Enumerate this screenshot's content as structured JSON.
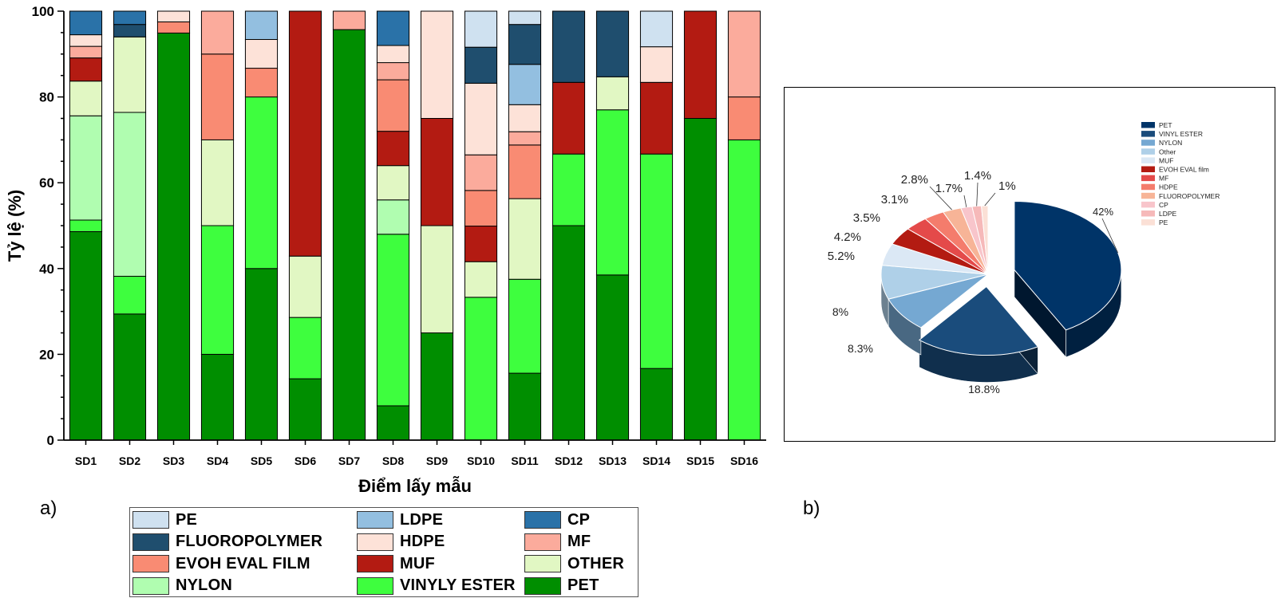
{
  "panel_labels": {
    "a": "a)",
    "b": "b)"
  },
  "colors": {
    "PE": "#cfe1f0",
    "LDPE": "#93bfe0",
    "CP": "#2a72a8",
    "FLUOROPOLYMER": "#1f4e6e",
    "HDPE": "#fde2d8",
    "MF": "#fbab9c",
    "EVOH EVAL FILM": "#f98b73",
    "MUF": "#b31b12",
    "OTHER": "#e1f7c3",
    "NYLON": "#b0fdb0",
    "VINYLY ESTER": "#3efe3e",
    "PET": "#008e00"
  },
  "legend_a": [
    {
      "key": "PE",
      "label": "PE"
    },
    {
      "key": "LDPE",
      "label": "LDPE"
    },
    {
      "key": "CP",
      "label": "CP"
    },
    {
      "key": "FLUOROPOLYMER",
      "label": "FLUOROPOLYMER"
    },
    {
      "key": "HDPE",
      "label": "HDPE"
    },
    {
      "key": "MF",
      "label": "MF"
    },
    {
      "key": "EVOH EVAL FILM",
      "label": "EVOH EVAL FILM"
    },
    {
      "key": "MUF",
      "label": "MUF"
    },
    {
      "key": "OTHER",
      "label": "OTHER"
    },
    {
      "key": "NYLON",
      "label": "NYLON"
    },
    {
      "key": "VINYLY ESTER",
      "label": "VINYLY ESTER"
    },
    {
      "key": "PET",
      "label": "PET"
    }
  ],
  "chart_data": [
    {
      "type": "bar",
      "stacked": true,
      "title": "",
      "xlabel": "Điểm lấy mẫu",
      "ylabel": "Tỷ lệ (%)",
      "ylim": [
        0,
        100
      ],
      "yticks": [
        0,
        20,
        40,
        60,
        80,
        100
      ],
      "categories": [
        "SD1",
        "SD2",
        "SD3",
        "SD4",
        "SD5",
        "SD6",
        "SD7",
        "SD8",
        "SD9",
        "SD10",
        "SD11",
        "SD12",
        "SD13",
        "SD14",
        "SD15",
        "SD16"
      ],
      "stack_order": [
        "PET",
        "VINYLY ESTER",
        "NYLON",
        "OTHER",
        "MUF",
        "EVOH EVAL FILM",
        "MF",
        "HDPE",
        "LDPE",
        "FLUOROPOLYMER",
        "CP",
        "PE"
      ],
      "series": [
        {
          "name": "PET",
          "values": [
            48.6,
            29.4,
            94.9,
            20,
            40,
            14.3,
            95.7,
            8,
            25,
            0,
            15.6,
            50,
            38.5,
            16.7,
            75,
            0
          ]
        },
        {
          "name": "VINYLY ESTER",
          "values": [
            2.7,
            8.8,
            0,
            30,
            40,
            14.3,
            0,
            40,
            0,
            33.3,
            21.9,
            16.7,
            38.5,
            50,
            0,
            70
          ]
        },
        {
          "name": "NYLON",
          "values": [
            24.3,
            38.2,
            0,
            0,
            0,
            0,
            0,
            8,
            0,
            0,
            0,
            0,
            0,
            0,
            0,
            0
          ]
        },
        {
          "name": "OTHER",
          "values": [
            8.1,
            17.6,
            0,
            20,
            0,
            14.3,
            0,
            8,
            25,
            8.3,
            18.8,
            0,
            7.7,
            0,
            0,
            0
          ]
        },
        {
          "name": "MUF",
          "values": [
            5.4,
            0,
            0,
            0,
            0,
            57.1,
            0,
            8,
            25,
            8.3,
            0,
            16.7,
            0,
            16.7,
            25,
            0
          ]
        },
        {
          "name": "EVOH EVAL FILM",
          "values": [
            0,
            0,
            2.6,
            20,
            6.7,
            0,
            0,
            12,
            0,
            8.3,
            12.5,
            0,
            0,
            0,
            0,
            10
          ]
        },
        {
          "name": "MF",
          "values": [
            2.7,
            0,
            0,
            10,
            0,
            0,
            4.3,
            4,
            0,
            8.3,
            3.1,
            0,
            0,
            0,
            0,
            20
          ]
        },
        {
          "name": "HDPE",
          "values": [
            2.7,
            0,
            2.5,
            0,
            6.7,
            0,
            0,
            4,
            25,
            16.7,
            6.3,
            0,
            0,
            8.3,
            0,
            0
          ]
        },
        {
          "name": "LDPE",
          "values": [
            0,
            0,
            0,
            0,
            6.6,
            0,
            0,
            0,
            0,
            0,
            9.4,
            0,
            0,
            0,
            0,
            0
          ]
        },
        {
          "name": "FLUOROPOLYMER",
          "values": [
            0,
            2.9,
            0,
            0,
            0,
            0,
            0,
            0,
            0,
            8.4,
            9.3,
            16.6,
            15.3,
            0,
            0,
            0
          ]
        },
        {
          "name": "CP",
          "values": [
            5.5,
            3.1,
            0,
            0,
            0,
            0,
            0,
            8,
            0,
            0,
            0,
            0,
            0,
            0,
            0,
            0
          ]
        },
        {
          "name": "PE",
          "values": [
            0,
            0,
            0,
            0,
            0,
            0,
            0,
            0,
            0,
            8.4,
            3.1,
            0,
            0,
            8.3,
            0,
            0
          ]
        }
      ]
    },
    {
      "type": "pie",
      "title": "",
      "style": "3d-exploded",
      "legend_position": "top-right",
      "slices": [
        {
          "label": "PET",
          "value": 42,
          "color": "#003468",
          "display": "42%"
        },
        {
          "label": "VINYL ESTER",
          "value": 18.8,
          "color": "#1a4c7c",
          "display": "18.8%"
        },
        {
          "label": "NYLON",
          "value": 8.3,
          "color": "#75a8d2",
          "display": "8.3%"
        },
        {
          "label": "Other",
          "value": 8,
          "color": "#afd0e8",
          "display": "8%"
        },
        {
          "label": "MUF",
          "value": 5.2,
          "color": "#dbe8f5",
          "display": "5.2%"
        },
        {
          "label": "EVOH EVAL film",
          "value": 4.2,
          "color": "#b31b12",
          "display": "4.2%"
        },
        {
          "label": "MF",
          "value": 3.5,
          "color": "#e44a4a",
          "display": "3.5%"
        },
        {
          "label": "HDPE",
          "value": 3.1,
          "color": "#f47c6c",
          "display": "3.1%"
        },
        {
          "label": "FLUOROPOLYMER",
          "value": 2.8,
          "color": "#f7b497",
          "display": "2.8%"
        },
        {
          "label": "CP",
          "value": 1.7,
          "color": "#f8c5cb",
          "display": "1.7%"
        },
        {
          "label": "LDPE",
          "value": 1.4,
          "color": "#f6b9b9",
          "display": "1.4%"
        },
        {
          "label": "PE",
          "value": 1,
          "color": "#fbe0d6",
          "display": "1%"
        }
      ]
    }
  ]
}
